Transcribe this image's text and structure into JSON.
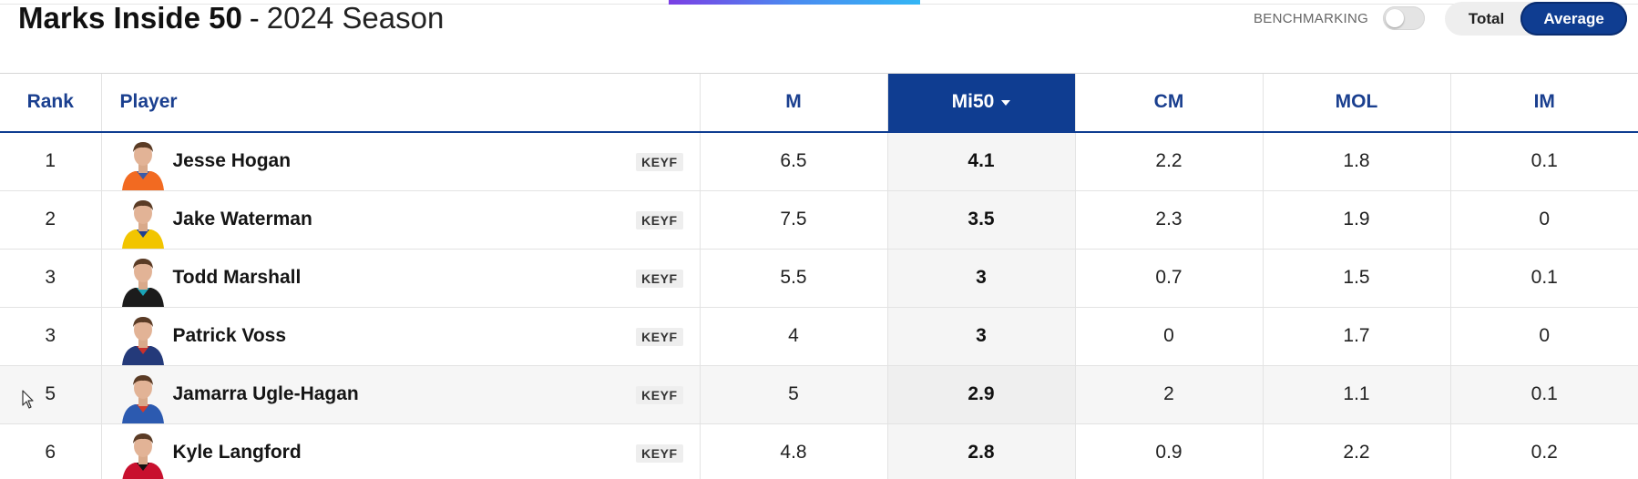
{
  "header": {
    "title": "Marks Inside 50",
    "separator": "-",
    "season": "2024 Season",
    "benchmarking_label": "BENCHMARKING",
    "toggle_total": "Total",
    "toggle_average": "Average"
  },
  "table": {
    "columns": [
      "Rank",
      "Player",
      "M",
      "Mi50",
      "CM",
      "MOL",
      "IM"
    ],
    "rows": [
      {
        "rank": "1",
        "player": "Jesse Hogan",
        "pos": "KEYF",
        "m": "6.5",
        "mi50": "4.1",
        "cm": "2.2",
        "mol": "1.8",
        "im": "0.1",
        "jersey": "#f26a21",
        "accent": "#3a5ba8"
      },
      {
        "rank": "2",
        "player": "Jake Waterman",
        "pos": "KEYF",
        "m": "7.5",
        "mi50": "3.5",
        "cm": "2.3",
        "mol": "1.9",
        "im": "0",
        "jersey": "#f2c500",
        "accent": "#1e3f8f"
      },
      {
        "rank": "3",
        "player": "Todd Marshall",
        "pos": "KEYF",
        "m": "5.5",
        "mi50": "3",
        "cm": "0.7",
        "mol": "1.5",
        "im": "0.1",
        "jersey": "#1c1c1c",
        "accent": "#1aa5b8"
      },
      {
        "rank": "3",
        "player": "Patrick Voss",
        "pos": "KEYF",
        "m": "4",
        "mi50": "3",
        "cm": "0",
        "mol": "1.7",
        "im": "0",
        "jersey": "#243a7a",
        "accent": "#c9302c"
      },
      {
        "rank": "5",
        "player": "Jamarra Ugle-Hagan",
        "pos": "KEYF",
        "m": "5",
        "mi50": "2.9",
        "cm": "2",
        "mol": "1.1",
        "im": "0.1",
        "jersey": "#2c5ab0",
        "accent": "#d33a2c"
      },
      {
        "rank": "6",
        "player": "Kyle Langford",
        "pos": "KEYF",
        "m": "4.8",
        "mi50": "2.8",
        "cm": "0.9",
        "mol": "2.2",
        "im": "0.2",
        "jersey": "#c8102e",
        "accent": "#111111"
      }
    ]
  },
  "colors": {
    "brand_navy": "#0f3d91",
    "header_text": "#1a3f8f"
  }
}
